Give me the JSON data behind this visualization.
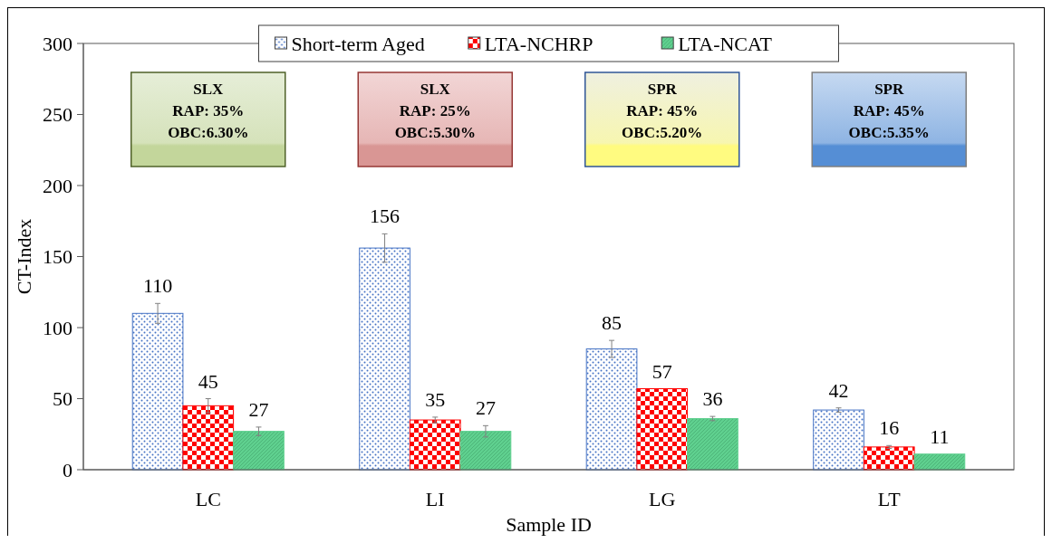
{
  "chart_data": {
    "type": "bar",
    "xlabel": "Sample ID",
    "ylabel": "CT-Index",
    "categories": [
      "LC",
      "LI",
      "LG",
      "LT"
    ],
    "series": [
      {
        "name": "Short-term Aged",
        "color": "#4472c4",
        "values": [
          110,
          156,
          85,
          42
        ],
        "errors": [
          7,
          10,
          6,
          1.5
        ]
      },
      {
        "name": "LTA-NCHRP",
        "color": "#ff0000",
        "values": [
          45,
          35,
          57,
          16
        ],
        "errors": [
          5,
          2,
          null,
          1
        ]
      },
      {
        "name": "LTA-NCAT",
        "color": "#5fd08f",
        "values": [
          27,
          27,
          36,
          11
        ],
        "errors": [
          3,
          4,
          1.5,
          null
        ]
      }
    ],
    "ylim": [
      0,
      300
    ],
    "yticks": [
      0,
      50,
      100,
      150,
      200,
      250,
      300
    ],
    "data_labels": true,
    "legend": "top",
    "grid": false,
    "annotations": [
      "SLX\nRAP: 35%\nOBC:6.30%",
      "SLX\nRAP: 25%\nOBC:5.30%",
      "SPR\nRAP: 45%\nOBC:5.20%",
      "SPR\nRAP: 45%\nOBC:5.35%"
    ]
  }
}
